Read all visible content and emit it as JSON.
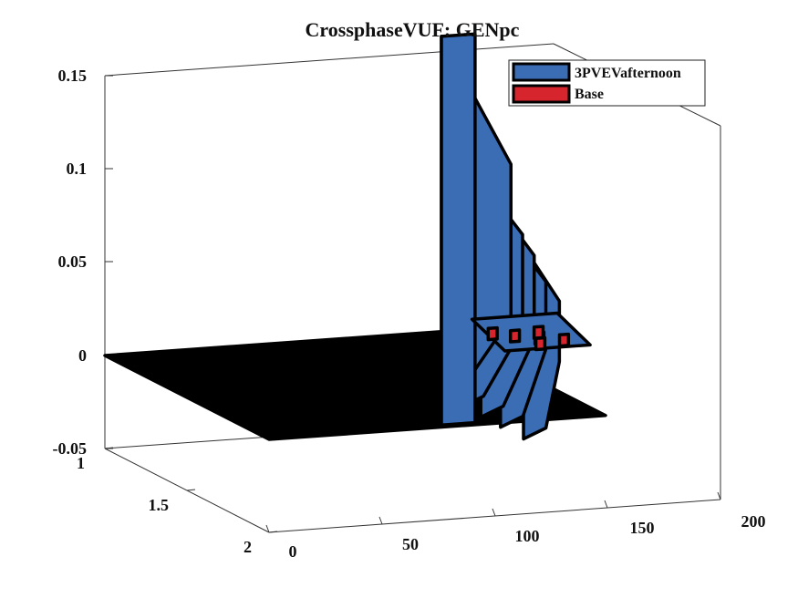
{
  "chart_data": {
    "type": "3d-waterfall",
    "title": "CrossphaseVUF: GENpc",
    "xlabel": "",
    "ylabel": "",
    "zlabel": "",
    "x_ticks": [
      0,
      50,
      100,
      150,
      200
    ],
    "y_ticks": [
      1,
      1.5,
      2
    ],
    "z_ticks": [
      "-0.05",
      "0",
      "0.05",
      "0.1",
      "0.15"
    ],
    "xlim": [
      0,
      200
    ],
    "ylim": [
      1,
      2
    ],
    "zlim": [
      -0.05,
      0.15
    ],
    "legend": {
      "placement": "top-right",
      "entries": [
        "3PVEVafternoon",
        "Base"
      ]
    },
    "series": [
      {
        "name": "3PVEVafternoon",
        "color": "#3b6db5",
        "profile_x": [
          0,
          120,
          121,
          124,
          128,
          134,
          136,
          138,
          142,
          146,
          150,
          154,
          158,
          162,
          166,
          170,
          175,
          180,
          190
        ],
        "panels": [
          {
            "y": 1.0,
            "peak": 0.158
          },
          {
            "y": 1.12,
            "peak": 0.1
          },
          {
            "y": 1.24,
            "peak": 0.09
          },
          {
            "y": 1.36,
            "peak": 0.075
          },
          {
            "y": 1.5,
            "peak": 0.068
          }
        ]
      },
      {
        "name": "Base",
        "color": "#d7252e",
        "values_note": ""
      }
    ]
  }
}
